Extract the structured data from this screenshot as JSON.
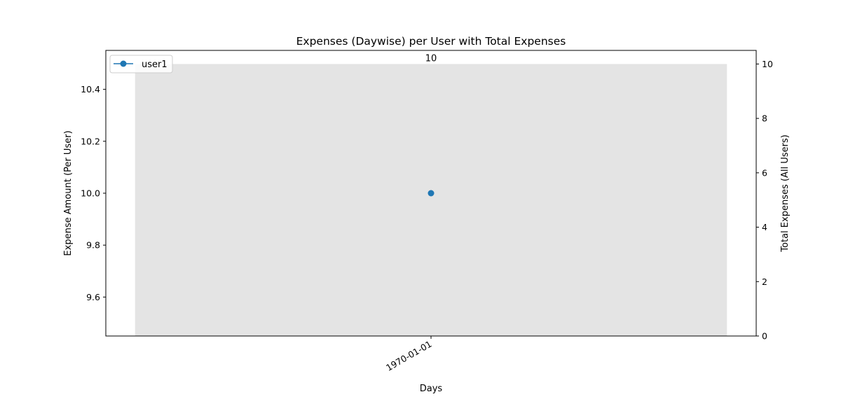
{
  "chart_data": {
    "type": "bar+line",
    "title": "Expenses (Daywise) per User with Total Expenses",
    "xlabel": "Days",
    "ylabel_left": "Expense Amount (Per User)",
    "ylabel_right": "Total Expenses (All Users)",
    "categories": [
      "1970-01-01"
    ],
    "left_axis": {
      "ylim": [
        9.45,
        10.55
      ],
      "ticks": [
        9.6,
        9.8,
        10.0,
        10.2,
        10.4
      ],
      "tick_labels": [
        "9.6",
        "9.8",
        "10.0",
        "10.2",
        "10.4"
      ]
    },
    "right_axis": {
      "ylim": [
        0,
        10.5
      ],
      "ticks": [
        0,
        2,
        4,
        6,
        8,
        10
      ],
      "tick_labels": [
        "0",
        "2",
        "4",
        "6",
        "8",
        "10"
      ]
    },
    "series": [
      {
        "name": "user1",
        "type": "line",
        "axis": "left",
        "values": [
          10.0
        ],
        "color": "#1f77b4"
      }
    ],
    "totals": {
      "type": "bar",
      "axis": "right",
      "values": [
        10
      ],
      "labels": [
        "10"
      ],
      "color": "#e4e4e4"
    },
    "grid": false,
    "legend": {
      "position": "top-left"
    }
  }
}
